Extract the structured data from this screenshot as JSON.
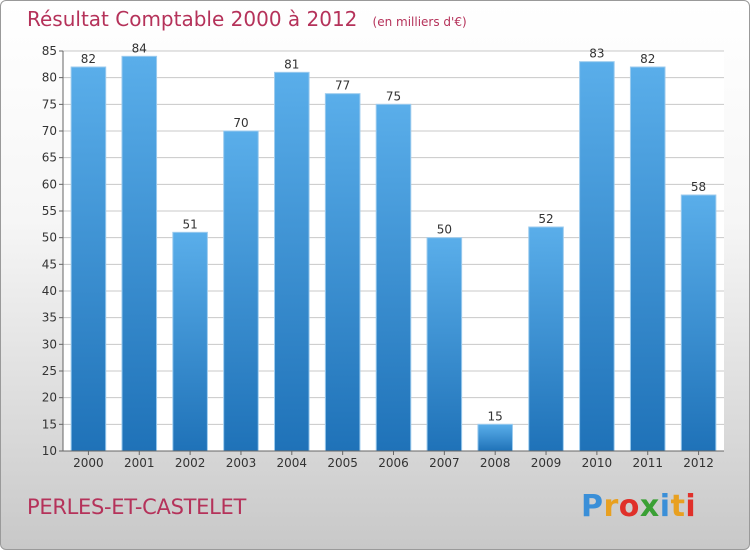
{
  "page": {
    "title": "Résultat Comptable 2000 à 2012",
    "subtitle": "(en milliers d'€)",
    "place": "PERLES-ET-CASTELET",
    "brand": {
      "letters": [
        "P",
        "r",
        "o",
        "x",
        "i",
        "t",
        "i"
      ],
      "colors": [
        "#3a8fd8",
        "#e8a020",
        "#e0302a",
        "#3aa035",
        "#3a8fd8",
        "#e8a020",
        "#e0302a"
      ]
    }
  },
  "chart_data": {
    "type": "bar",
    "categories": [
      "2000",
      "2001",
      "2002",
      "2003",
      "2004",
      "2005",
      "2006",
      "2007",
      "2008",
      "2009",
      "2010",
      "2011",
      "2012"
    ],
    "values": [
      82,
      84,
      51,
      70,
      81,
      77,
      75,
      50,
      15,
      52,
      83,
      82,
      58
    ],
    "ylim": [
      10,
      85
    ],
    "yticks": [
      10,
      15,
      20,
      25,
      30,
      35,
      40,
      45,
      50,
      55,
      60,
      65,
      70,
      75,
      80,
      85
    ],
    "grid": true,
    "colors": {
      "bar_light": "#5aaeea",
      "bar_dark": "#1f72b8",
      "grid": "#c8c8c8"
    }
  }
}
